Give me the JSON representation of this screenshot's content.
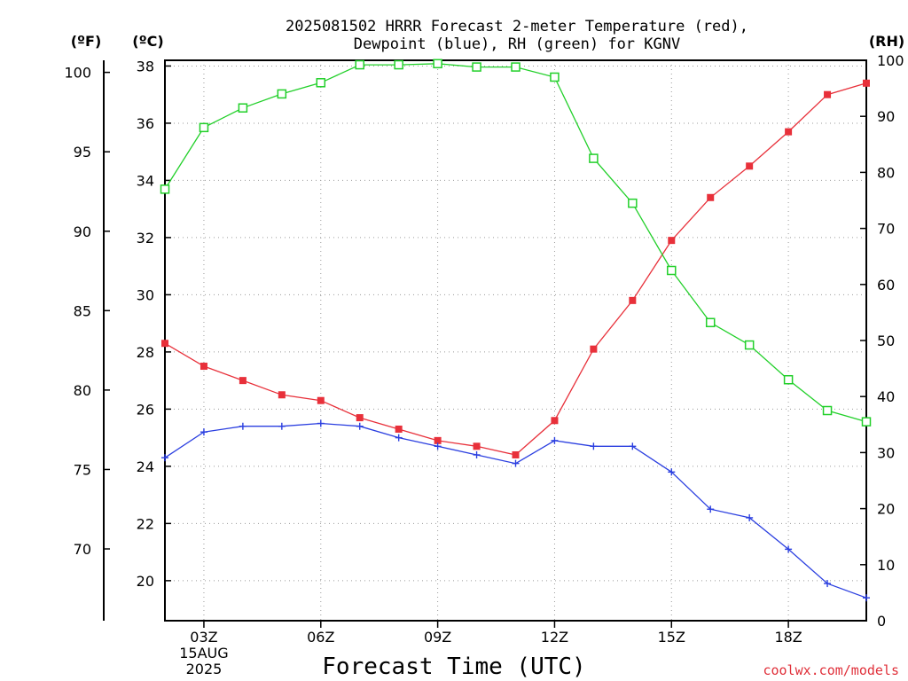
{
  "chart_data": {
    "type": "line",
    "title_lines": [
      "2025081502 HRRR Forecast 2-meter Temperature (red),",
      "Dewpoint (blue), RH (green) for KGNV"
    ],
    "xlabel": "Forecast Time (UTC)",
    "credit": "coolwx.com/models",
    "units": {
      "fahrenheit": "(ºF)",
      "celsius": "(ºC)",
      "rh": "(RH)"
    },
    "x_hours": [
      2,
      3,
      4,
      5,
      6,
      7,
      8,
      9,
      10,
      11,
      12,
      13,
      14,
      15,
      16,
      17,
      18,
      19,
      20
    ],
    "xlim": [
      2,
      20
    ],
    "x_ticks": [
      {
        "hour": 3,
        "label": "03Z",
        "sub": [
          "15AUG",
          "2025"
        ]
      },
      {
        "hour": 6,
        "label": "06Z",
        "sub": []
      },
      {
        "hour": 9,
        "label": "09Z",
        "sub": []
      },
      {
        "hour": 12,
        "label": "12Z",
        "sub": []
      },
      {
        "hour": 15,
        "label": "15Z",
        "sub": []
      },
      {
        "hour": 18,
        "label": "18Z",
        "sub": []
      }
    ],
    "celsius_axis": {
      "range": [
        18.6,
        38.2
      ],
      "ticks": [
        20,
        22,
        24,
        26,
        28,
        30,
        32,
        34,
        36,
        38
      ]
    },
    "fahrenheit_ticks": [
      70,
      75,
      80,
      85,
      90,
      95,
      100
    ],
    "rh_axis": {
      "range": [
        0,
        100
      ],
      "ticks": [
        0,
        10,
        20,
        30,
        40,
        50,
        60,
        70,
        80,
        90,
        100
      ]
    },
    "series": [
      {
        "name": "Temperature",
        "axis": "celsius",
        "color": "#e8303a",
        "marker": "filled-square",
        "values": [
          28.3,
          27.5,
          27.0,
          26.5,
          26.3,
          25.7,
          25.3,
          24.9,
          24.7,
          24.4,
          25.6,
          28.1,
          29.8,
          31.9,
          33.4,
          34.5,
          35.7,
          37.0,
          37.4
        ]
      },
      {
        "name": "Dewpoint",
        "axis": "celsius",
        "color": "#2b3fe0",
        "marker": "plus",
        "values": [
          24.3,
          25.2,
          25.4,
          25.4,
          25.5,
          25.4,
          25.0,
          24.7,
          24.4,
          24.1,
          24.9,
          24.7,
          24.7,
          23.8,
          22.5,
          22.2,
          21.1,
          19.9,
          19.4
        ]
      },
      {
        "name": "RH",
        "axis": "rh",
        "color": "#22d02a",
        "marker": "open-square",
        "values": [
          77,
          88,
          91.5,
          94,
          96,
          99.2,
          99.2,
          99.4,
          98.8,
          98.8,
          97,
          82.5,
          74.5,
          62.5,
          53.2,
          49.2,
          43,
          37.5,
          35.5
        ]
      }
    ]
  }
}
